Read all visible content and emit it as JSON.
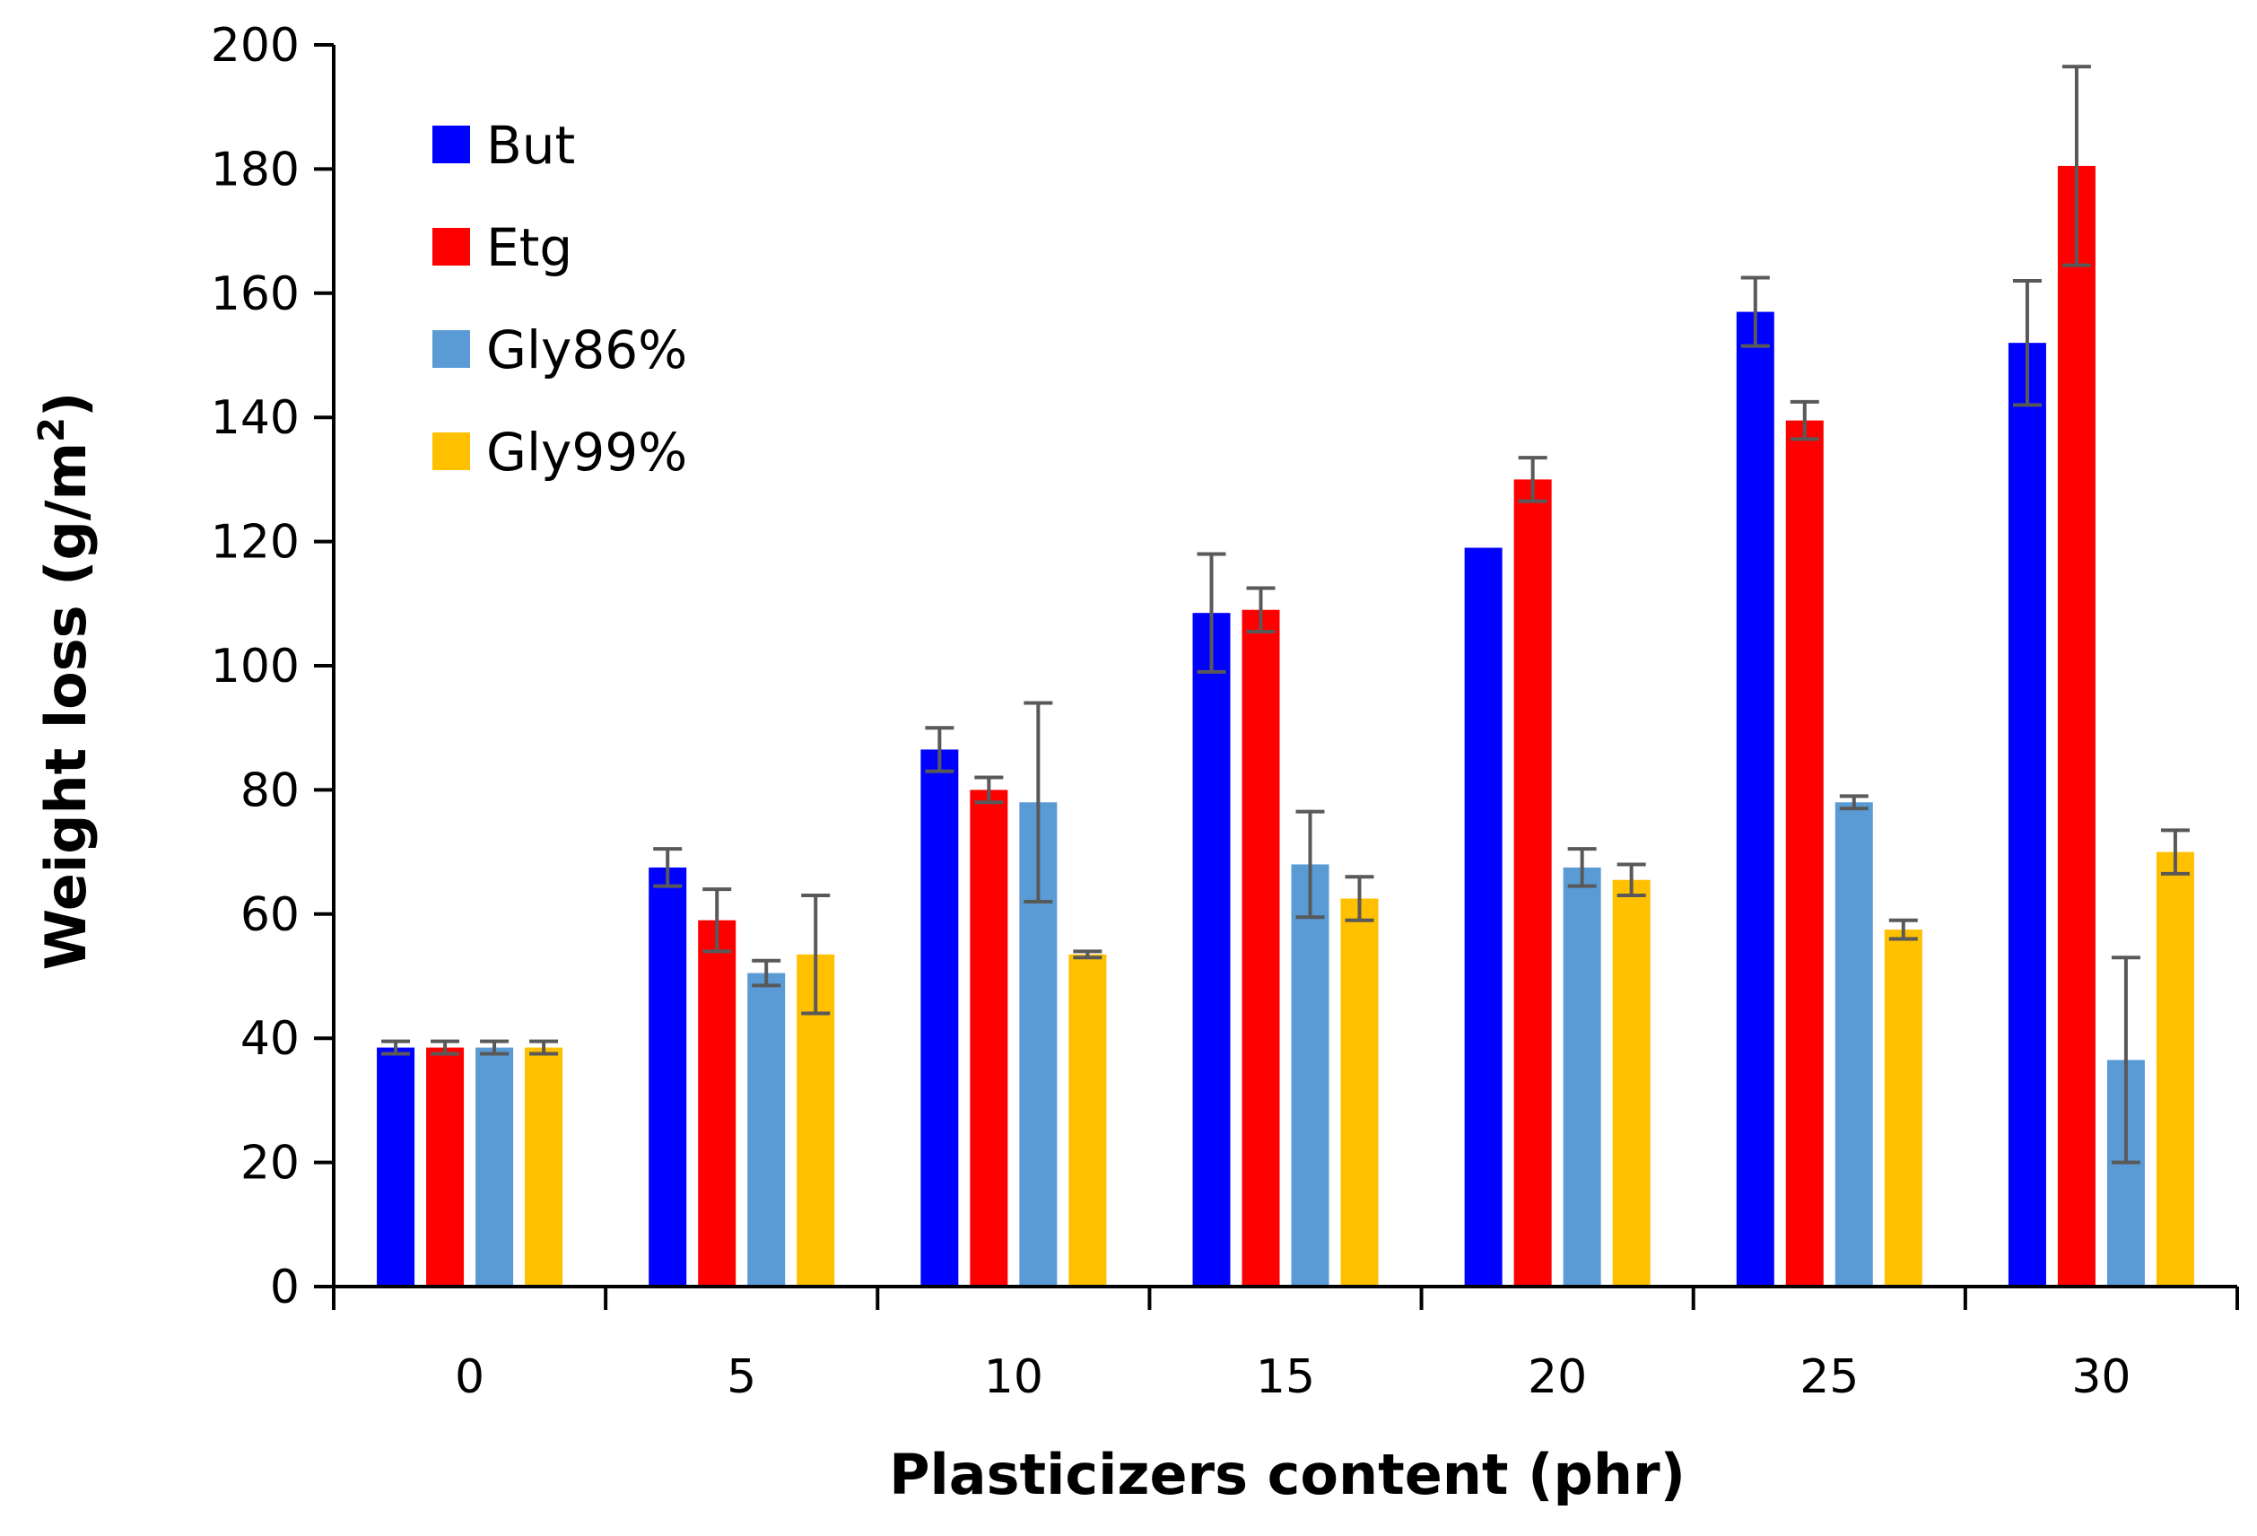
{
  "chart_data": {
    "type": "bar",
    "title": "",
    "xlabel": "Plasticizers content (phr)",
    "ylabel": "Weight loss  (g/m",
    "ylabel_superscript": "2",
    "ylabel_close": ")",
    "ylim": [
      0,
      200
    ],
    "ytick_step": 20,
    "grid": false,
    "legend_position": "top-left",
    "categories": [
      "0",
      "5",
      "10",
      "15",
      "20",
      "25",
      "30"
    ],
    "series": [
      {
        "name": "But",
        "color": "#0000ff",
        "values": [
          38.5,
          67.5,
          86.5,
          108.5,
          119,
          157,
          152
        ],
        "errors": [
          1,
          3,
          3.5,
          9.5,
          0,
          5.5,
          10
        ]
      },
      {
        "name": "Etg",
        "color": "#ff0000",
        "values": [
          38.5,
          59,
          80,
          109,
          130,
          139.5,
          180.5
        ],
        "errors": [
          1,
          5,
          2,
          3.5,
          3.5,
          3,
          16
        ]
      },
      {
        "name": "Gly86%",
        "color": "#5b9bd5",
        "values": [
          38.5,
          50.5,
          78,
          68,
          67.5,
          78,
          36.5
        ],
        "errors": [
          1,
          2,
          16,
          8.5,
          3,
          1,
          16.5
        ]
      },
      {
        "name": "Gly99%",
        "color": "#ffc000",
        "values": [
          38.5,
          53.5,
          53.5,
          62.5,
          65.5,
          57.5,
          70
        ],
        "errors": [
          1,
          9.5,
          0.5,
          3.5,
          2.5,
          1.5,
          3.5
        ]
      }
    ]
  }
}
